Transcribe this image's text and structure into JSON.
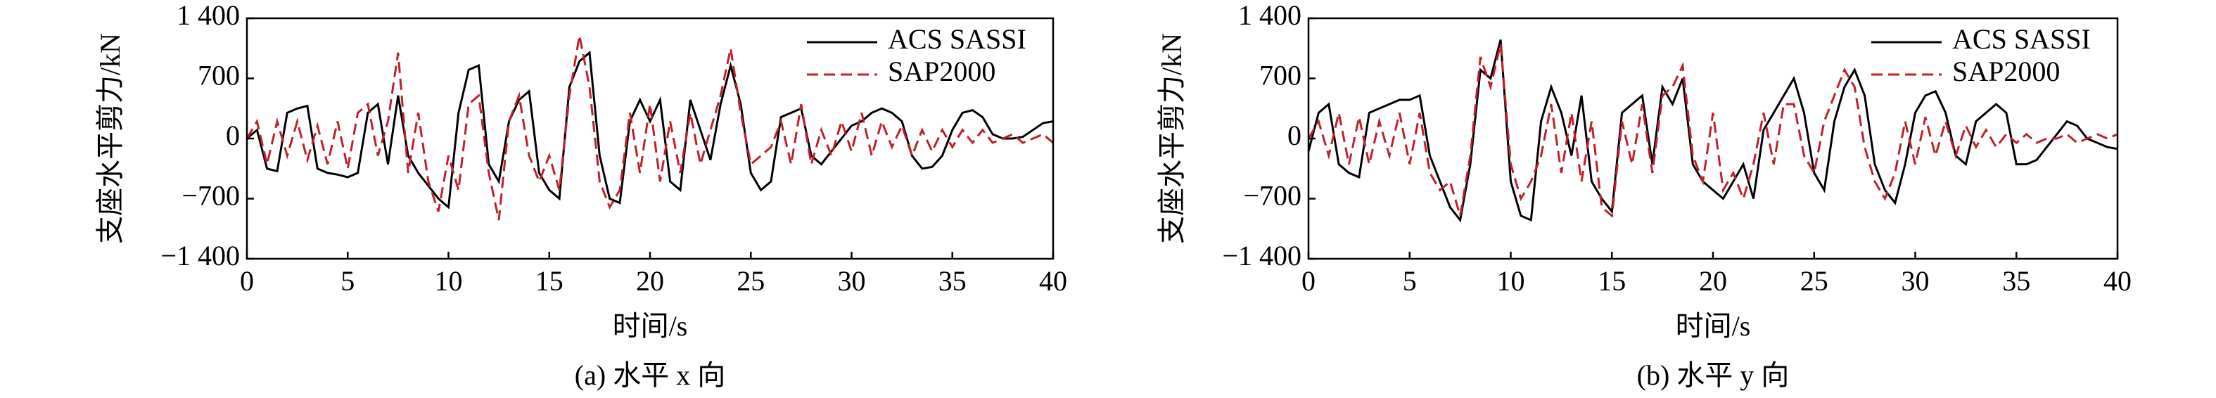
{
  "chart_data": [
    {
      "type": "line",
      "caption": "(a) 水平 x 向",
      "xlabel": "时间/s",
      "ylabel": "支座水平剪力/kN",
      "xlim": [
        0,
        40
      ],
      "ylim": [
        -1400,
        1400
      ],
      "xticks": [
        0,
        5,
        10,
        15,
        20,
        25,
        30,
        35,
        40
      ],
      "yticks": [
        {
          "value": -1400,
          "label": "−1 400"
        },
        {
          "value": -700,
          "label": "−700"
        },
        0,
        700,
        {
          "value": 1400,
          "label": "1 400"
        }
      ],
      "legend": "upper right",
      "x": [
        0,
        0.5,
        1,
        1.5,
        2,
        2.5,
        3,
        3.5,
        4,
        4.5,
        5,
        5.5,
        6,
        6.5,
        7,
        7.5,
        8,
        8.5,
        9,
        9.5,
        10,
        10.5,
        11,
        11.5,
        12,
        12.5,
        13,
        13.5,
        14,
        14.5,
        15,
        15.5,
        16,
        16.5,
        17,
        17.5,
        18,
        18.5,
        19,
        19.5,
        20,
        20.5,
        21,
        21.5,
        22,
        22.5,
        23,
        23.5,
        24,
        24.5,
        25,
        25.5,
        26,
        26.5,
        27,
        27.5,
        28,
        28.5,
        29,
        29.5,
        30,
        30.5,
        31,
        31.5,
        32,
        32.5,
        33,
        33.5,
        34,
        34.5,
        35,
        35.5,
        36,
        36.5,
        37,
        37.5,
        38,
        38.5,
        39,
        39.5,
        40
      ],
      "series": [
        {
          "name": "ACS SASSI",
          "color": "#000000",
          "dash": "solid",
          "values": [
            0,
            100,
            -350,
            -380,
            300,
            350,
            380,
            -350,
            -400,
            -420,
            -450,
            -400,
            300,
            400,
            -300,
            500,
            -200,
            -400,
            -550,
            -700,
            -800,
            300,
            800,
            850,
            -300,
            -500,
            200,
            450,
            550,
            -400,
            -600,
            -700,
            600,
            900,
            1000,
            -200,
            -700,
            -750,
            200,
            450,
            200,
            450,
            -500,
            -600,
            450,
            100,
            -250,
            400,
            850,
            400,
            -400,
            -600,
            -500,
            250,
            300,
            350,
            -200,
            -300,
            -150,
            0,
            150,
            200,
            300,
            350,
            300,
            200,
            -200,
            -350,
            -330,
            -200,
            100,
            300,
            330,
            250,
            50,
            0,
            0,
            20,
            100,
            180,
            200
          ]
        },
        {
          "name": "SAP2000",
          "color": "#c0202a",
          "dash": "dashed",
          "values": [
            0,
            200,
            -300,
            200,
            -200,
            200,
            -250,
            150,
            -300,
            200,
            -350,
            300,
            400,
            -200,
            200,
            1000,
            -400,
            300,
            -500,
            -850,
            -200,
            -600,
            400,
            500,
            -400,
            -950,
            200,
            500,
            -200,
            -500,
            -200,
            -600,
            500,
            1200,
            600,
            -500,
            -800,
            -600,
            300,
            -400,
            400,
            -500,
            200,
            -400,
            300,
            -300,
            100,
            500,
            1050,
            300,
            -300,
            -200,
            -100,
            200,
            -300,
            400,
            -300,
            100,
            -200,
            200,
            -150,
            300,
            -200,
            200,
            -100,
            150,
            -200,
            100,
            -150,
            100,
            -100,
            100,
            -50,
            100,
            -50,
            0,
            50,
            -50,
            0,
            50,
            -50
          ]
        }
      ]
    },
    {
      "type": "line",
      "caption": "(b) 水平 y 向",
      "xlabel": "时间/s",
      "ylabel": "支座水平剪力/kN",
      "xlim": [
        0,
        40
      ],
      "ylim": [
        -1400,
        1400
      ],
      "xticks": [
        0,
        5,
        10,
        15,
        20,
        25,
        30,
        35,
        40
      ],
      "yticks": [
        {
          "value": -1400,
          "label": "−1 400"
        },
        {
          "value": -700,
          "label": "−700"
        },
        0,
        700,
        {
          "value": 1400,
          "label": "1 400"
        }
      ],
      "legend": "upper right",
      "x": [
        0,
        0.5,
        1,
        1.5,
        2,
        2.5,
        3,
        3.5,
        4,
        4.5,
        5,
        5.5,
        6,
        6.5,
        7,
        7.5,
        8,
        8.5,
        9,
        9.5,
        10,
        10.5,
        11,
        11.5,
        12,
        12.5,
        13,
        13.5,
        14,
        14.5,
        15,
        15.5,
        16,
        16.5,
        17,
        17.5,
        18,
        18.5,
        19,
        19.5,
        20,
        20.5,
        21,
        21.5,
        22,
        22.5,
        23,
        23.5,
        24,
        24.5,
        25,
        25.5,
        26,
        26.5,
        27,
        27.5,
        28,
        28.5,
        29,
        29.5,
        30,
        30.5,
        31,
        31.5,
        32,
        32.5,
        33,
        33.5,
        34,
        34.5,
        35,
        35.5,
        36,
        36.5,
        37,
        37.5,
        38,
        38.5,
        39,
        39.5,
        40
      ],
      "series": [
        {
          "name": "ACS SASSI",
          "color": "#000000",
          "dash": "solid",
          "values": [
            -150,
            300,
            400,
            -300,
            -400,
            -450,
            300,
            350,
            400,
            450,
            450,
            500,
            -200,
            -500,
            -800,
            -950,
            -300,
            800,
            700,
            1150,
            -500,
            -900,
            -950,
            200,
            600,
            300,
            -200,
            500,
            -500,
            -700,
            -850,
            300,
            400,
            500,
            -300,
            600,
            400,
            700,
            -300,
            -500,
            -600,
            -700,
            -500,
            -300,
            -700,
            100,
            300,
            500,
            700,
            300,
            -400,
            -600,
            200,
            600,
            800,
            500,
            -300,
            -600,
            -750,
            -300,
            300,
            500,
            550,
            300,
            -200,
            -300,
            200,
            300,
            400,
            300,
            -300,
            -300,
            -250,
            -100,
            50,
            200,
            150,
            0,
            -50,
            -100,
            -120
          ]
        },
        {
          "name": "SAP2000",
          "color": "#c0202a",
          "dash": "dashed",
          "values": [
            0,
            200,
            -200,
            300,
            -300,
            250,
            -300,
            200,
            -200,
            300,
            -300,
            300,
            -400,
            -600,
            -500,
            -900,
            -200,
            950,
            600,
            1100,
            -300,
            -700,
            -500,
            -200,
            400,
            -400,
            300,
            -500,
            200,
            -800,
            -900,
            200,
            -300,
            400,
            -400,
            500,
            600,
            850,
            -200,
            -500,
            300,
            -600,
            -400,
            -700,
            -300,
            300,
            -300,
            400,
            400,
            -200,
            -400,
            200,
            500,
            800,
            600,
            -100,
            -500,
            -700,
            -400,
            200,
            -300,
            250,
            -200,
            200,
            -200,
            150,
            -100,
            100,
            -100,
            50,
            -50,
            50,
            -50,
            0,
            0,
            50,
            -50,
            0,
            50,
            0,
            50
          ]
        }
      ]
    }
  ]
}
